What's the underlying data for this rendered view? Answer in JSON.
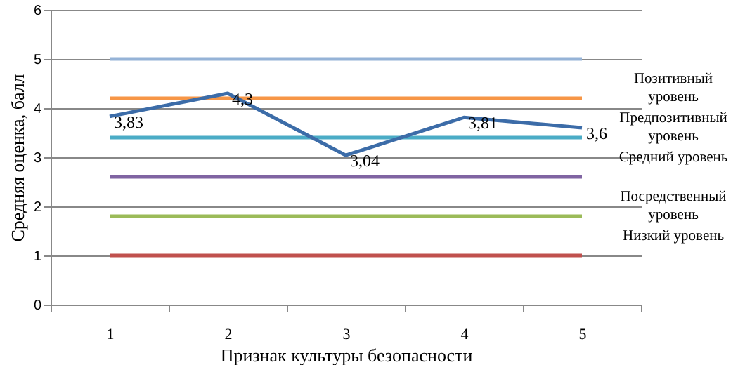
{
  "chart_data": {
    "type": "line",
    "xlabel": "Признак культуры безопасности",
    "ylabel": "Средняя оценка, балл",
    "categories": [
      "1",
      "2",
      "3",
      "4",
      "5"
    ],
    "series": [
      {
        "color": "#95b3d7",
        "values": [
          5,
          5,
          5,
          5,
          5
        ]
      },
      {
        "color": "#f79646",
        "values": [
          4.2,
          4.2,
          4.2,
          4.2,
          4.2
        ]
      },
      {
        "color": "#4bacc6",
        "values": [
          3.4,
          3.4,
          3.4,
          3.4,
          3.4
        ]
      },
      {
        "color": "#8064a2",
        "values": [
          2.6,
          2.6,
          2.6,
          2.6,
          2.6
        ]
      },
      {
        "color": "#9bbb59",
        "values": [
          1.8,
          1.8,
          1.8,
          1.8,
          1.8
        ]
      },
      {
        "color": "#c0504d",
        "values": [
          1,
          1,
          1,
          1,
          1
        ]
      },
      {
        "color": "#3c6ca8",
        "values": [
          3.83,
          4.3,
          3.04,
          3.81,
          3.6
        ],
        "value_labels": [
          "3,83",
          "4,3",
          "3,04",
          "3,81",
          "3,6"
        ]
      }
    ],
    "ylim": [
      0,
      6
    ],
    "yticks": [
      0,
      1,
      2,
      3,
      4,
      5,
      6
    ],
    "grid": "y",
    "marker": "none",
    "annotations": [
      "Позитивный уровень",
      "Предпозитивный уровень",
      "Средний уровень",
      "Посредственный уровень",
      "Низкий уровень"
    ]
  }
}
